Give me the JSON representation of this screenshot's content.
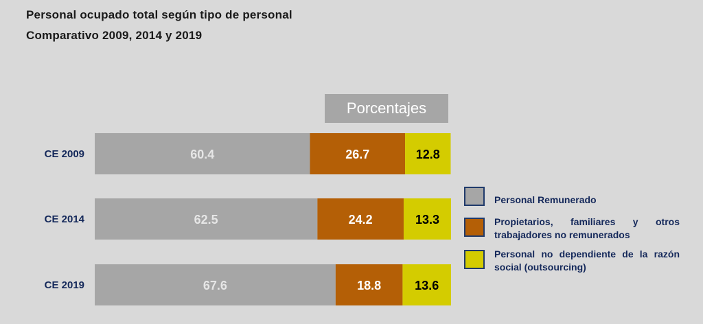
{
  "chart_data": {
    "type": "bar",
    "orientation": "horizontal",
    "stacked": true,
    "title": "Personal ocupado total según tipo de personal",
    "subtitle": "Comparativo 2009, 2014 y 2019",
    "unit": "Porcentajes",
    "categories": [
      "CE 2009",
      "CE 2014",
      "CE 2019"
    ],
    "series": [
      {
        "name": "Personal Remunerado",
        "values": [
          60.4,
          62.5,
          67.6
        ],
        "color": "#a6a6a6",
        "label_color": "#e6e6e6"
      },
      {
        "name": "Propietarios, familiares y otros trabajadores no remunerados",
        "values": [
          26.7,
          24.2,
          18.8
        ],
        "color": "#b45f06",
        "label_color": "#ffffff"
      },
      {
        "name": "Personal no dependiente de la razón social (outsourcing)",
        "values": [
          12.8,
          13.3,
          13.6
        ],
        "color": "#d4cc00",
        "label_color": "#000000"
      }
    ],
    "xlim": [
      0,
      100
    ],
    "grid": false,
    "legend_position": "right"
  }
}
